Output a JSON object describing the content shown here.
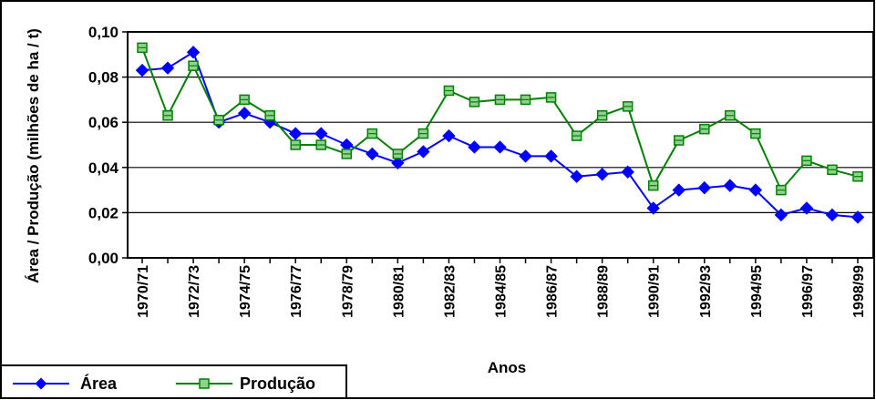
{
  "chart_data": {
    "type": "line",
    "title": "",
    "xlabel": "Anos",
    "ylabel": "Área / Produção (milhões de ha / t)",
    "ylim": [
      0,
      0.1
    ],
    "yticks": [
      "0,00",
      "0,02",
      "0,04",
      "0,06",
      "0,08",
      "0,10"
    ],
    "grid": true,
    "legend_position": "bottom-left",
    "x": [
      "1970/71",
      "1971/72",
      "1972/73",
      "1973/74",
      "1974/75",
      "1975/76",
      "1976/77",
      "1977/78",
      "1978/79",
      "1979/80",
      "1980/81",
      "1981/82",
      "1982/83",
      "1983/84",
      "1984/85",
      "1985/86",
      "1986/87",
      "1987/88",
      "1988/89",
      "1989/90",
      "1990/91",
      "1991/92",
      "1992/93",
      "1993/94",
      "1994/95",
      "1995/96",
      "1996/97",
      "1997/98",
      "1998/99"
    ],
    "x_tick_labels": [
      "1970/71",
      "1972/73",
      "1974/75",
      "1976/77",
      "1978/79",
      "1980/81",
      "1982/83",
      "1984/85",
      "1986/87",
      "1988/89",
      "1990/91",
      "1992/93",
      "1994/95",
      "1996/97",
      "1998/99"
    ],
    "series": [
      {
        "name": "Área",
        "color": "#0000FF",
        "marker": "diamond",
        "values": [
          0.083,
          0.084,
          0.091,
          0.06,
          0.064,
          0.06,
          0.055,
          0.055,
          0.05,
          0.046,
          0.042,
          0.047,
          0.054,
          0.049,
          0.049,
          0.045,
          0.045,
          0.036,
          0.037,
          0.038,
          0.022,
          0.03,
          0.031,
          0.032,
          0.03,
          0.019,
          0.022,
          0.019,
          0.018
        ]
      },
      {
        "name": "Produção",
        "color": "#008000",
        "marker": "square",
        "values": [
          0.093,
          0.063,
          0.085,
          0.061,
          0.07,
          0.063,
          0.05,
          0.05,
          0.046,
          0.055,
          0.046,
          0.055,
          0.074,
          0.069,
          0.07,
          0.07,
          0.071,
          0.054,
          0.063,
          0.067,
          0.032,
          0.052,
          0.057,
          0.063,
          0.055,
          0.03,
          0.043,
          0.039,
          0.036
        ]
      }
    ]
  }
}
